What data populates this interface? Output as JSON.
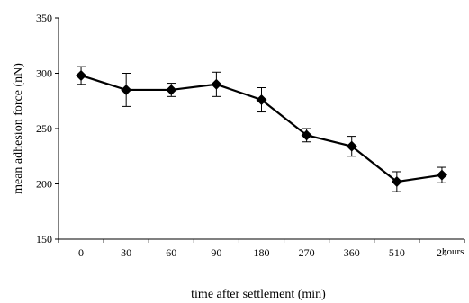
{
  "chart_data": {
    "type": "line",
    "title": "",
    "xlabel": "time after settlement (min)",
    "ylabel": "mean adhesion force (nN)",
    "ylim": [
      150,
      350
    ],
    "yticks": [
      150,
      200,
      250,
      300,
      350
    ],
    "categories": [
      "0",
      "30",
      "60",
      "90",
      "180",
      "270",
      "360",
      "510",
      "24"
    ],
    "last_category_unit": "hours",
    "grid": false,
    "legend": "none",
    "marker": "diamond",
    "series": [
      {
        "values": [
          298,
          285,
          285,
          290,
          276,
          244,
          234,
          202,
          208
        ],
        "error": [
          8,
          15,
          6,
          11,
          11,
          6,
          9,
          9,
          7
        ]
      }
    ],
    "colors": {
      "line": "#000000",
      "marker": "#000000"
    }
  }
}
